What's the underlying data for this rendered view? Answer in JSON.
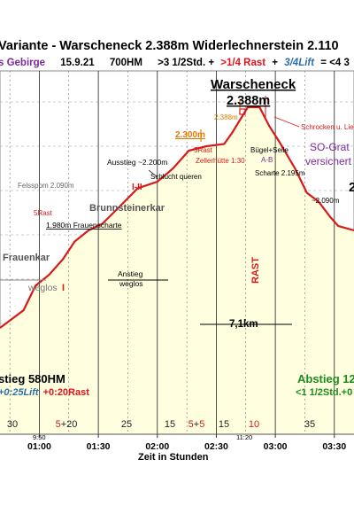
{
  "header": {
    "title": "Variante - Warscheneck 2.388m Widerlechnerstein 2.110",
    "subtitle": {
      "region": "s Gebirge",
      "date": "15.9.21",
      "hm": "700HM",
      "time": ">3 1/2Std. +",
      "rest": ">1/4 Rast",
      "plus": "+",
      "lift": "3/4Lift",
      "total": "= <4 3"
    }
  },
  "chart_data": {
    "type": "area",
    "title": "Variante - Warscheneck 2.388m Widerlechnerstein 2.110",
    "xlabel": "Zeit in Stunden",
    "ylabel": "",
    "xlim": [
      "00:40",
      "03:40"
    ],
    "ylim": [
      1650,
      2470
    ],
    "x_ticks": [
      "01:00",
      "01:30",
      "02:00",
      "02:30",
      "03:00",
      "03:30"
    ],
    "x_sub_ticks": [
      "9:50",
      "11:20"
    ],
    "segment_minutes": [
      "30",
      "5+20",
      "25",
      "15",
      "5+5",
      "15",
      "10",
      "35"
    ],
    "profile": {
      "x": [
        "00:40",
        "00:52",
        "00:58",
        "01:05",
        "01:12",
        "01:18",
        "01:25",
        "01:32",
        "01:40",
        "01:50",
        "02:00",
        "02:08",
        "02:16",
        "02:25",
        "02:34",
        "02:38",
        "02:46",
        "02:52",
        "02:57",
        "03:02",
        "03:10",
        "03:16",
        "03:22",
        "03:28",
        "03:32",
        "03:40"
      ],
      "y": [
        1890,
        1930,
        1985,
        2010,
        2045,
        2085,
        2110,
        2125,
        2160,
        2205,
        2220,
        2250,
        2290,
        2300,
        2305,
        2330,
        2388,
        2388,
        2345,
        2310,
        2250,
        2195,
        2175,
        2140,
        2120,
        2110
      ]
    },
    "labels": [
      {
        "text": "Warscheneck",
        "kind": "summit"
      },
      {
        "text": "2.388m",
        "kind": "summit-elev"
      },
      {
        "text": "2.388m",
        "kind": "orange"
      },
      {
        "text": "2.300m",
        "kind": "orange-underlined"
      },
      {
        "text": "Schrocken u. Liez",
        "kind": "red"
      },
      {
        "text": "Bügel+Seile",
        "kind": "black"
      },
      {
        "text": "A-B",
        "kind": "purple"
      },
      {
        "text": "SO-Grat",
        "kind": "purple-big"
      },
      {
        "text": "versichert",
        "kind": "purple-big"
      },
      {
        "text": "5Rast",
        "kind": "red"
      },
      {
        "text": "Zellerhütte 1:30",
        "kind": "red"
      },
      {
        "text": "Ausstieg ~2.200m",
        "kind": "black"
      },
      {
        "text": "Schlucht queren",
        "kind": "black"
      },
      {
        "text": "Scharte 2.195m",
        "kind": "black"
      },
      {
        "text": "~2.090m",
        "kind": "black"
      },
      {
        "text": "2",
        "kind": "black-big"
      },
      {
        "text": "Felsspom 2.090m",
        "kind": "gray"
      },
      {
        "text": "I-II",
        "kind": "red-big"
      },
      {
        "text": "Brunnsteinerkar",
        "kind": "gray-big"
      },
      {
        "text": "5Rast",
        "kind": "red"
      },
      {
        "text": "1.980m Frauenscharte",
        "kind": "black"
      },
      {
        "text": "Frauenkar",
        "kind": "gray-big"
      },
      {
        "text": "weglos",
        "kind": "gray-big"
      },
      {
        "text": "I",
        "kind": "red-big"
      },
      {
        "text": "Anstieg",
        "kind": "black"
      },
      {
        "text": "weglos",
        "kind": "black"
      },
      {
        "text": "RAST",
        "kind": "red-vertical"
      },
      {
        "text": "7,1km",
        "kind": "black-big"
      }
    ],
    "ascent": {
      "title": "stieg 580HM",
      "p1": "+0:25Lift",
      "p2": "+0:20Rast"
    },
    "descent": {
      "title": "Abstieg 12",
      "line": "<1 1/2Std.+0"
    },
    "grid": true
  }
}
